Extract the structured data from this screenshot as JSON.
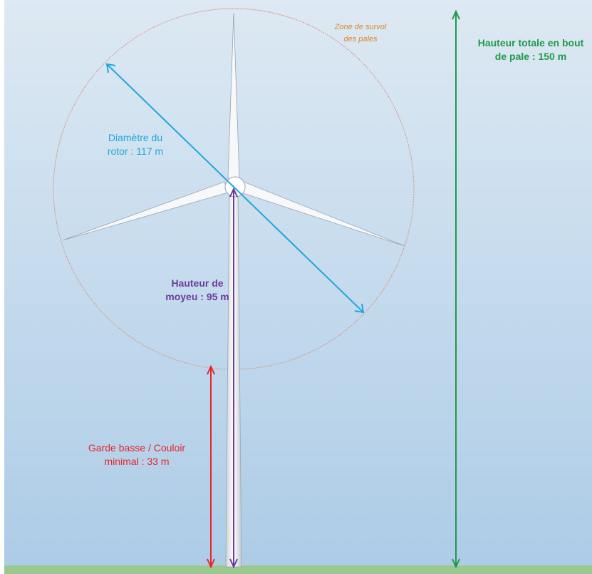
{
  "labels": {
    "zone_survol": [
      "Zone de survol",
      "des pales"
    ],
    "hauteur_totale": [
      "Hauteur totale en bout",
      "de pale : 150 m"
    ],
    "diametre_rotor": [
      "Diamètre du",
      "rotor : 117 m"
    ],
    "hauteur_moyeu": [
      "Hauteur de",
      "moyeu : 95 m"
    ],
    "garde_basse": [
      "Garde basse / Couloir",
      "minimal : 33 m"
    ]
  },
  "measurements": {
    "total_height_m": 150,
    "rotor_diameter_m": 117,
    "hub_height_m": 95,
    "min_clearance_m": 33
  },
  "colors": {
    "sky_top": "#dde9f3",
    "sky_bottom": "#adcce7",
    "ground": "#9bc88e",
    "sweep_circle": "#d4927a",
    "total_height_arrow": "#1f9a4a",
    "diameter_arrow": "#1ea7dd",
    "hub_arrow": "#6a3c9c",
    "clearance_arrow": "#e4262a",
    "zone_text": "#e0832a"
  }
}
